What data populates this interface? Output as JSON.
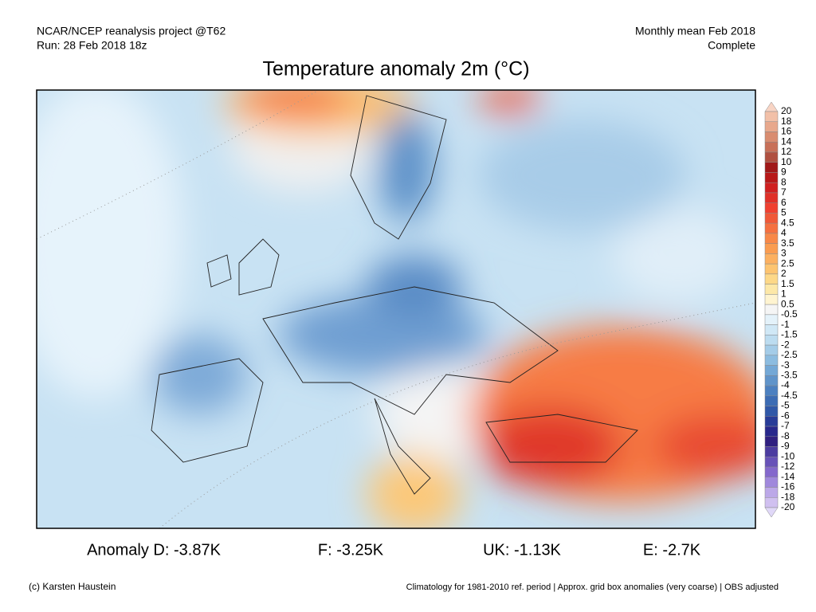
{
  "header": {
    "source": "NCAR/NCEP reanalysis project @T62",
    "run": "Run: 28 Feb 2018 18z",
    "period": "Monthly mean Feb 2018",
    "status": "Complete",
    "title": "Temperature anomaly 2m (°C)"
  },
  "colorbar": {
    "labels": [
      20,
      18,
      16,
      14,
      12,
      10,
      9,
      8,
      7,
      6,
      5,
      4.5,
      4,
      3.5,
      3,
      2.5,
      2,
      1.5,
      1,
      0.5,
      -0.5,
      -1,
      -1.5,
      -2,
      -2.5,
      -3,
      -3.5,
      -4,
      -4.5,
      -5,
      -6,
      -7,
      -8,
      -9,
      -10,
      -12,
      -14,
      -16,
      -18,
      -20
    ],
    "colors": [
      "#f8d4c4",
      "#f2c0a8",
      "#e8a88c",
      "#d98c70",
      "#c87058",
      "#b05040",
      "#a01818",
      "#b81818",
      "#d02020",
      "#e03028",
      "#f04030",
      "#f05838",
      "#f57040",
      "#f88848",
      "#fa9c50",
      "#fcb060",
      "#fdc470",
      "#fdd888",
      "#fde8a8",
      "#fff4d0",
      "#f5f5f5",
      "#e4f2fa",
      "#d0e8f6",
      "#bcdcf0",
      "#a4cce8",
      "#8cbce0",
      "#74a8d6",
      "#6094ca",
      "#4c80c0",
      "#3c6cb4",
      "#3058a8",
      "#283c98",
      "#28288c",
      "#302080",
      "#4c3ca0",
      "#6852b8",
      "#8468cc",
      "#a088dc",
      "#bca8e8",
      "#d0c0f0",
      "#e0d8f8"
    ]
  },
  "anomalies": [
    "Anomaly D: -3.87K",
    "F: -3.25K",
    "UK: -1.13K",
    "E: -2.7K"
  ],
  "footer": {
    "credit": "(c) Karsten Haustein",
    "note": "Climatology for 1981-2010 ref. period | Approx. grid box anomalies (very coarse) | OBS adjusted"
  }
}
